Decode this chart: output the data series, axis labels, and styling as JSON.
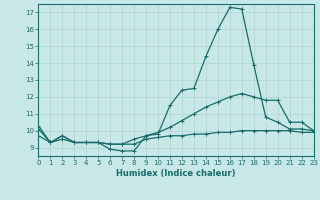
{
  "xlabel": "Humidex (Indice chaleur)",
  "xlim": [
    0,
    23
  ],
  "ylim": [
    8.5,
    17.5
  ],
  "yticks": [
    9,
    10,
    11,
    12,
    13,
    14,
    15,
    16,
    17
  ],
  "xticks": [
    0,
    1,
    2,
    3,
    4,
    5,
    6,
    7,
    8,
    9,
    10,
    11,
    12,
    13,
    14,
    15,
    16,
    17,
    18,
    19,
    20,
    21,
    22,
    23
  ],
  "bg_color": "#c8e8e8",
  "line_color": "#1a6b6b",
  "grid_color": "#aed4d4",
  "line1_x": [
    0,
    1,
    2,
    3,
    4,
    5,
    6,
    7,
    8,
    9,
    10,
    11,
    12,
    13,
    14,
    15,
    16,
    17,
    18,
    19,
    20,
    21,
    22,
    23
  ],
  "line1_y": [
    10.3,
    9.3,
    9.7,
    9.3,
    9.3,
    9.3,
    8.9,
    8.8,
    8.8,
    9.7,
    9.8,
    11.5,
    12.4,
    12.5,
    14.4,
    16.0,
    17.3,
    17.2,
    13.9,
    10.8,
    10.5,
    10.1,
    10.1,
    10.0
  ],
  "line2_x": [
    0,
    1,
    2,
    3,
    4,
    5,
    6,
    7,
    8,
    9,
    10,
    11,
    12,
    13,
    14,
    15,
    16,
    17,
    18,
    19,
    20,
    21,
    22,
    23
  ],
  "line2_y": [
    10.1,
    9.3,
    9.7,
    9.3,
    9.3,
    9.3,
    9.2,
    9.2,
    9.5,
    9.7,
    9.9,
    10.2,
    10.6,
    11.0,
    11.4,
    11.7,
    12.0,
    12.2,
    12.0,
    11.8,
    11.8,
    10.5,
    10.5,
    10.0
  ],
  "line3_x": [
    0,
    1,
    2,
    3,
    4,
    5,
    6,
    7,
    8,
    9,
    10,
    11,
    12,
    13,
    14,
    15,
    16,
    17,
    18,
    19,
    20,
    21,
    22,
    23
  ],
  "line3_y": [
    9.7,
    9.3,
    9.5,
    9.3,
    9.3,
    9.3,
    9.2,
    9.2,
    9.2,
    9.5,
    9.6,
    9.7,
    9.7,
    9.8,
    9.8,
    9.9,
    9.9,
    10.0,
    10.0,
    10.0,
    10.0,
    10.0,
    9.9,
    9.9
  ]
}
